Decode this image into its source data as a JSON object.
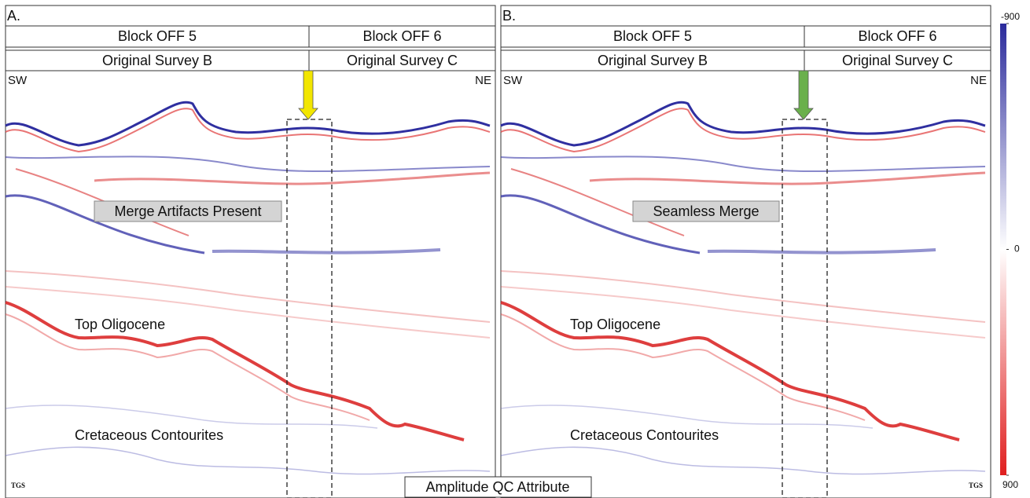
{
  "panels": [
    {
      "label": "A.",
      "columns": [
        {
          "block": "Block OFF 5",
          "survey": "Original Survey B"
        },
        {
          "block": "Block OFF 6",
          "survey": "Original Survey C"
        }
      ],
      "left": "SW",
      "right": "NE",
      "annotation": "Merge Artifacts Present",
      "horizon": "Top Oligocene",
      "unit": "Cretaceous Contourites",
      "logo": "TGS",
      "arrow_color": "#f2e600"
    },
    {
      "label": "B.",
      "columns": [
        {
          "block": "Block OFF 5",
          "survey": "Original Survey B"
        },
        {
          "block": "Block OFF 6",
          "survey": "Original Survey C"
        }
      ],
      "left": "SW",
      "right": "NE",
      "annotation": "Seamless Merge",
      "horizon": "Top Oligocene",
      "unit": "Cretaceous Contourites",
      "logo": "TGS",
      "arrow_color": "#6ab04c"
    }
  ],
  "caption": "Amplitude QC Attribute",
  "colorbar": {
    "lim": [
      -900,
      900
    ],
    "ticks": [
      -900,
      0,
      900
    ]
  }
}
